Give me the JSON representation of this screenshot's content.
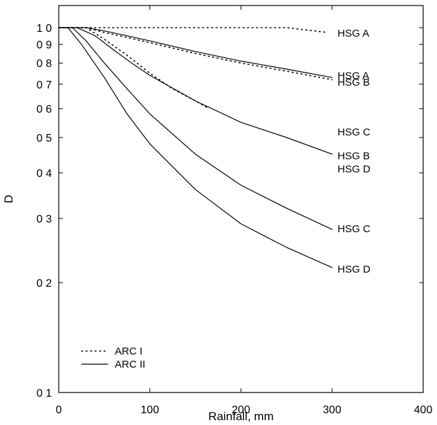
{
  "chart_data": {
    "type": "line",
    "xlabel": "Rainfall, mm",
    "ylabel": "D",
    "xlim": [
      0,
      400
    ],
    "ylim": [
      0.1,
      1.15
    ],
    "y_scale": "log",
    "x_ticks": [
      0,
      100,
      200,
      300,
      400
    ],
    "x_tick_labels": [
      "0",
      "100",
      "200",
      "300",
      "400"
    ],
    "y_ticks": [
      0.1,
      0.2,
      0.3,
      0.4,
      0.5,
      0.6,
      0.7,
      0.8,
      0.9,
      1.0
    ],
    "y_tick_labels": [
      "0 1",
      "0 2",
      "0 3",
      "0 4",
      "0 5",
      "0 6",
      "0 7",
      "0 8",
      "0 9",
      "1 0"
    ],
    "grid": false,
    "legend": {
      "position": "bottom-left",
      "entries": [
        {
          "label": "ARC I",
          "style": "dotted"
        },
        {
          "label": "ARC II",
          "style": "solid"
        }
      ]
    },
    "series": [
      {
        "style": "solid",
        "label": "HSG A",
        "x": [
          0,
          30,
          50,
          75,
          100,
          150,
          200,
          250,
          300
        ],
        "y": [
          1.0,
          1.0,
          0.98,
          0.95,
          0.92,
          0.86,
          0.81,
          0.77,
          0.73
        ]
      },
      {
        "style": "solid",
        "label": "HSG B",
        "x": [
          0,
          20,
          40,
          60,
          80,
          100,
          150,
          200,
          250,
          300
        ],
        "y": [
          1.0,
          1.0,
          0.95,
          0.87,
          0.8,
          0.74,
          0.63,
          0.55,
          0.5,
          0.45
        ]
      },
      {
        "style": "solid",
        "label": "HSG C",
        "x": [
          0,
          15,
          30,
          50,
          75,
          100,
          150,
          200,
          250,
          300
        ],
        "y": [
          1.0,
          1.0,
          0.92,
          0.8,
          0.68,
          0.58,
          0.45,
          0.37,
          0.32,
          0.28
        ]
      },
      {
        "style": "solid",
        "label": "HSG D",
        "x": [
          0,
          10,
          25,
          50,
          75,
          100,
          150,
          200,
          250,
          300
        ],
        "y": [
          1.0,
          1.0,
          0.9,
          0.73,
          0.58,
          0.48,
          0.36,
          0.29,
          0.25,
          0.22
        ]
      },
      {
        "style": "dotted",
        "label": "HSG A",
        "x": [
          0,
          100,
          150,
          200,
          250,
          295
        ],
        "y": [
          1.0,
          1.0,
          1.0,
          1.0,
          1.0,
          0.97
        ]
      },
      {
        "style": "dotted",
        "label": "HSG B",
        "x": [
          0,
          30,
          50,
          75,
          100,
          150,
          200,
          250,
          300
        ],
        "y": [
          1.0,
          1.0,
          0.97,
          0.94,
          0.91,
          0.85,
          0.8,
          0.76,
          0.72
        ]
      },
      {
        "style": "dotted",
        "label": "HSG C",
        "x": [
          0,
          30,
          50,
          75,
          100,
          125,
          150,
          165
        ],
        "y": [
          1.0,
          1.0,
          0.93,
          0.84,
          0.75,
          0.68,
          0.63,
          0.6
        ]
      }
    ],
    "curve_labels": [
      "HSG A",
      "HSG A",
      "HSG B",
      "HSG C",
      "HSG B",
      "HSG D",
      "HSG C",
      "HSG D"
    ]
  }
}
